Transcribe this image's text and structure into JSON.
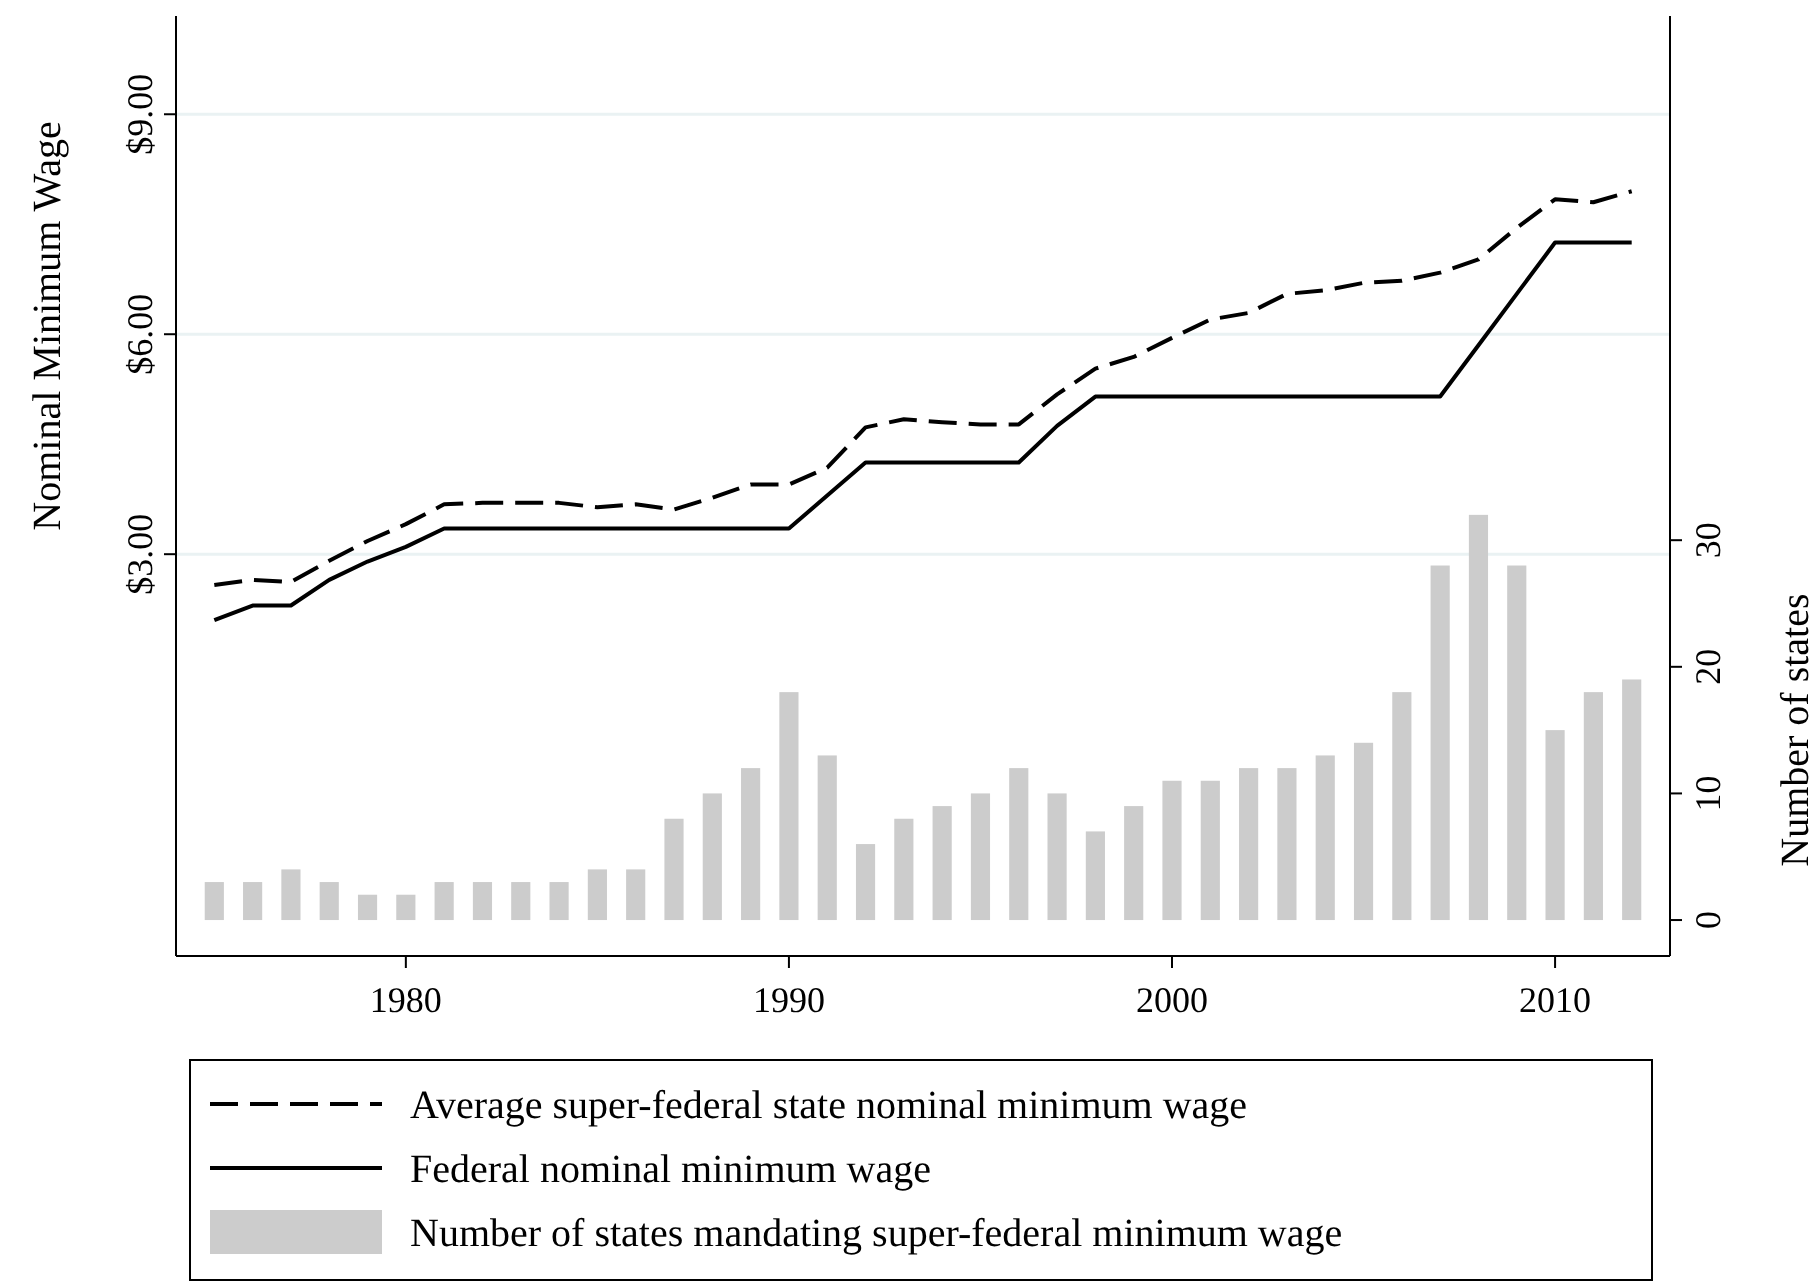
{
  "chart_data": {
    "type": "line",
    "ylabel": "Nominal Minimum Wage",
    "y2label": "Number of states",
    "x": [
      1975,
      1976,
      1977,
      1978,
      1979,
      1980,
      1981,
      1982,
      1983,
      1984,
      1985,
      1986,
      1987,
      1988,
      1989,
      1990,
      1991,
      1992,
      1993,
      1994,
      1995,
      1996,
      1997,
      1998,
      1999,
      2000,
      2001,
      2002,
      2003,
      2004,
      2005,
      2006,
      2007,
      2008,
      2009,
      2010,
      2011,
      2012
    ],
    "xlim": [
      1974,
      2013
    ],
    "xticks": [
      1980,
      1990,
      2000,
      2010
    ],
    "ylim": [
      -2.48,
      10.34
    ],
    "yticks": [
      {
        "value": 3,
        "label": "$3.00"
      },
      {
        "value": 6,
        "label": "$6.00"
      },
      {
        "value": 9,
        "label": "$9.00"
      }
    ],
    "y2lim": [
      -2.84,
      71.4
    ],
    "y2ticks": [
      0,
      10,
      20,
      30
    ],
    "grid": "y",
    "legend": "bottom",
    "series": [
      {
        "name": "Average super-federal state nominal minimum wage",
        "line_style": "dashed",
        "color": "#000000",
        "values": [
          2.58,
          2.65,
          2.62,
          2.91,
          3.18,
          3.41,
          3.68,
          3.7,
          3.7,
          3.7,
          3.64,
          3.68,
          3.61,
          3.77,
          3.95,
          3.95,
          4.18,
          4.73,
          4.84,
          4.8,
          4.77,
          4.77,
          5.18,
          5.53,
          5.69,
          5.95,
          6.2,
          6.29,
          6.55,
          6.6,
          6.7,
          6.73,
          6.84,
          7.02,
          7.45,
          7.84,
          7.8,
          7.95
        ]
      },
      {
        "name": "Federal nominal minimum wage",
        "line_style": "solid",
        "color": "#000000",
        "values": [
          2.1,
          2.3,
          2.3,
          2.65,
          2.9,
          3.1,
          3.35,
          3.35,
          3.35,
          3.35,
          3.35,
          3.35,
          3.35,
          3.35,
          3.35,
          3.35,
          3.8,
          4.25,
          4.25,
          4.25,
          4.25,
          4.25,
          4.75,
          5.15,
          5.15,
          5.15,
          5.15,
          5.15,
          5.15,
          5.15,
          5.15,
          5.15,
          5.15,
          5.85,
          6.55,
          7.25,
          7.25,
          7.25
        ]
      },
      {
        "name": "Number of states mandating super-federal minimum wage",
        "type": "bar",
        "axis": "y2",
        "color": "#cccccc",
        "values": [
          3,
          3,
          4,
          3,
          2,
          2,
          3,
          3,
          3,
          3,
          4,
          4,
          8,
          10,
          12,
          18,
          13,
          6,
          8,
          9,
          10,
          12,
          10,
          7,
          9,
          11,
          11,
          12,
          12,
          13,
          14,
          18,
          28,
          32,
          28,
          15,
          18,
          19
        ]
      }
    ]
  }
}
